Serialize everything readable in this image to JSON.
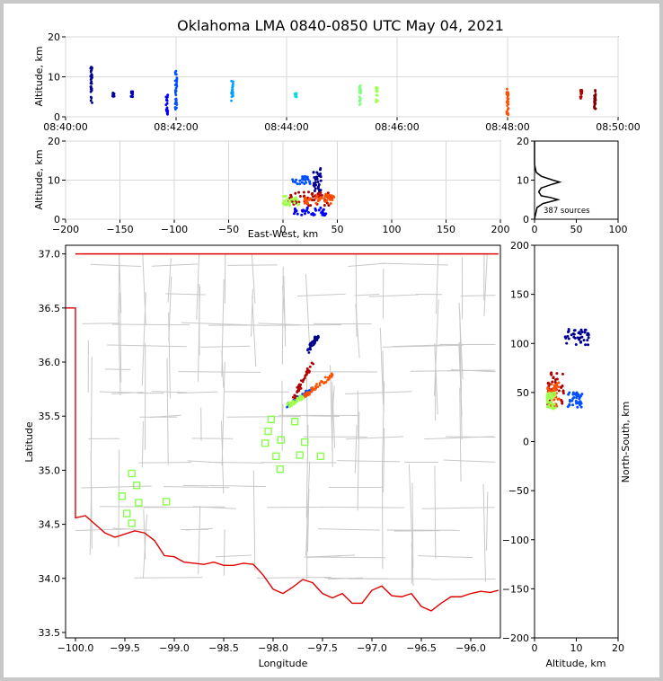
{
  "chart_data": [
    {
      "type": "scatter",
      "panel": "time-altitude",
      "title": "Oklahoma LMA 0840-0850 UTC May 04, 2021",
      "xlabel": "",
      "ylabel": "Altitude, km",
      "xlim": [
        "08:40:00",
        "08:50:00"
      ],
      "ylim": [
        0,
        20
      ],
      "xticks": [
        "08:40:00",
        "08:42:00",
        "08:44:00",
        "08:46:00",
        "08:48:00",
        "08:50:00"
      ],
      "yticks": [
        "0",
        "10",
        "20"
      ],
      "grid": true,
      "clusters": [
        {
          "time": "08:40:28",
          "alt_min": 3.5,
          "alt_max": 13.0,
          "color": "#00008f"
        },
        {
          "time": "08:40:52",
          "alt_min": 5.0,
          "alt_max": 6.0,
          "color": "#00009f"
        },
        {
          "time": "08:41:12",
          "alt_min": 5.0,
          "alt_max": 6.5,
          "color": "#0000bf"
        },
        {
          "time": "08:41:50",
          "alt_min": 0.5,
          "alt_max": 5.5,
          "color": "#0000ff"
        },
        {
          "time": "08:42:00",
          "alt_min": 1.5,
          "alt_max": 11.5,
          "color": "#0050ff"
        },
        {
          "time": "08:43:01",
          "alt_min": 4.0,
          "alt_max": 9.0,
          "color": "#00a0ff"
        },
        {
          "time": "08:44:10",
          "alt_min": 4.5,
          "alt_max": 6.0,
          "color": "#00e0e0"
        },
        {
          "time": "08:45:20",
          "alt_min": 3.0,
          "alt_max": 8.0,
          "color": "#80ff80"
        },
        {
          "time": "08:45:38",
          "alt_min": 3.5,
          "alt_max": 7.5,
          "color": "#a0ff50"
        },
        {
          "time": "08:48:00",
          "alt_min": 0.5,
          "alt_max": 7.0,
          "color": "#ff5000"
        },
        {
          "time": "08:49:20",
          "alt_min": 4.5,
          "alt_max": 7.0,
          "color": "#b00000"
        },
        {
          "time": "08:49:35",
          "alt_min": 1.5,
          "alt_max": 7.0,
          "color": "#800000"
        }
      ]
    },
    {
      "type": "scatter",
      "panel": "east-west-altitude",
      "xlabel": "East-West, km",
      "ylabel": "Altitude, km",
      "xlim": [
        -200,
        200
      ],
      "ylim": [
        0,
        20
      ],
      "xticks": [
        "−200",
        "−150",
        "−100",
        "−50",
        "0",
        "50",
        "100",
        "150",
        "200"
      ],
      "yticks": [
        "0",
        "10",
        "20"
      ],
      "grid": true,
      "groups": [
        {
          "x_min": 8,
          "x_max": 25,
          "alt_min": 9,
          "alt_max": 11,
          "color": "#0050ff"
        },
        {
          "x_min": 28,
          "x_max": 35,
          "alt_min": 7,
          "alt_max": 13,
          "color": "#00008f"
        },
        {
          "x_min": 5,
          "x_max": 45,
          "alt_min": 3.5,
          "alt_max": 7,
          "color": "#b00000"
        },
        {
          "x_min": 0,
          "x_max": 15,
          "alt_min": 3.5,
          "alt_max": 6,
          "color": "#a0ff50"
        },
        {
          "x_min": 20,
          "x_max": 48,
          "alt_min": 4,
          "alt_max": 6.5,
          "color": "#ff5000"
        },
        {
          "x_min": 10,
          "x_max": 40,
          "alt_min": 1,
          "alt_max": 3,
          "color": "#0000ff"
        }
      ]
    },
    {
      "type": "line",
      "panel": "altitude-histogram",
      "xlim": [
        0,
        100
      ],
      "ylim": [
        0,
        20
      ],
      "xticks": [
        "0",
        "50",
        "100"
      ],
      "yticks": [
        "0",
        "10",
        "20"
      ],
      "annotation": "387 sources",
      "profile": [
        {
          "alt": 0,
          "count": 0
        },
        {
          "alt": 1,
          "count": 1
        },
        {
          "alt": 2,
          "count": 2
        },
        {
          "alt": 3,
          "count": 3
        },
        {
          "alt": 4,
          "count": 10
        },
        {
          "alt": 5,
          "count": 28
        },
        {
          "alt": 5.5,
          "count": 20
        },
        {
          "alt": 6,
          "count": 8
        },
        {
          "alt": 7,
          "count": 5
        },
        {
          "alt": 8,
          "count": 8
        },
        {
          "alt": 9,
          "count": 22
        },
        {
          "alt": 9.5,
          "count": 30
        },
        {
          "alt": 10,
          "count": 22
        },
        {
          "alt": 11,
          "count": 8
        },
        {
          "alt": 12,
          "count": 2
        },
        {
          "alt": 13,
          "count": 1
        },
        {
          "alt": 14,
          "count": 0
        },
        {
          "alt": 20,
          "count": 0
        }
      ]
    },
    {
      "type": "scatter",
      "panel": "plan-view",
      "xlabel": "Longitude",
      "ylabel": "Latitude",
      "xlim": [
        -100.1,
        -95.7
      ],
      "ylim": [
        33.45,
        37.08
      ],
      "xticks": [
        "−100.0",
        "−99.5",
        "−99.0",
        "−98.5",
        "−98.0",
        "−97.5",
        "−97.0",
        "−96.5",
        "−96.0"
      ],
      "yticks": [
        "33.5",
        "34.0",
        "34.5",
        "35.0",
        "35.5",
        "36.0",
        "36.5",
        "37.0"
      ],
      "state_border_color": "#e00000",
      "county_line_color": "#c8c8c8",
      "stations": [
        [
          -99.43,
          34.97
        ],
        [
          -99.38,
          34.86
        ],
        [
          -99.53,
          34.76
        ],
        [
          -99.36,
          34.7
        ],
        [
          -99.08,
          34.71
        ],
        [
          -99.48,
          34.6
        ],
        [
          -99.43,
          34.51
        ],
        [
          -98.02,
          35.47
        ],
        [
          -98.05,
          35.36
        ],
        [
          -98.08,
          35.25
        ],
        [
          -97.92,
          35.28
        ],
        [
          -97.97,
          35.13
        ],
        [
          -97.93,
          35.01
        ],
        [
          -97.78,
          35.45
        ],
        [
          -97.68,
          35.26
        ],
        [
          -97.73,
          35.14
        ],
        [
          -97.52,
          35.13
        ]
      ],
      "groups": [
        {
          "lon_min": -97.65,
          "lon_max": -97.55,
          "lat_min": 36.1,
          "lat_max": 36.25,
          "color": "#00008f"
        },
        {
          "lon_min": -97.85,
          "lon_max": -97.6,
          "lat_min": 35.6,
          "lat_max": 35.75,
          "color": "#0050ff"
        },
        {
          "lon_min": -97.7,
          "lon_max": -97.4,
          "lat_min": 35.68,
          "lat_max": 35.88,
          "color": "#ff5000"
        },
        {
          "lon_min": -97.85,
          "lon_max": -97.7,
          "lat_min": 35.6,
          "lat_max": 35.68,
          "color": "#a0ff50"
        },
        {
          "lon_min": -97.8,
          "lon_max": -97.6,
          "lat_min": 35.65,
          "lat_max": 36.0,
          "color": "#b00000"
        }
      ]
    },
    {
      "type": "scatter",
      "panel": "altitude-north-south",
      "xlabel": "Altitude, km",
      "ylabel": "North-South, km",
      "xlim": [
        0,
        20
      ],
      "ylim": [
        -200,
        200
      ],
      "xticks": [
        "0",
        "10",
        "20"
      ],
      "yticks": [
        "−200",
        "−150",
        "−100",
        "−50",
        "0",
        "50",
        "100",
        "150",
        "200"
      ],
      "groups": [
        {
          "alt_min": 7,
          "alt_max": 13,
          "y_min": 98,
          "y_max": 115,
          "color": "#00008f"
        },
        {
          "alt_min": 8,
          "alt_max": 11.5,
          "y_min": 35,
          "y_max": 50,
          "color": "#0050ff"
        },
        {
          "alt_min": 3,
          "alt_max": 7,
          "y_min": 35,
          "y_max": 80,
          "color": "#b00000"
        },
        {
          "alt_min": 3,
          "alt_max": 6,
          "y_min": 35,
          "y_max": 60,
          "color": "#ff5000"
        },
        {
          "alt_min": 3,
          "alt_max": 5,
          "y_min": 33,
          "y_max": 50,
          "color": "#a0ff50"
        }
      ]
    }
  ]
}
